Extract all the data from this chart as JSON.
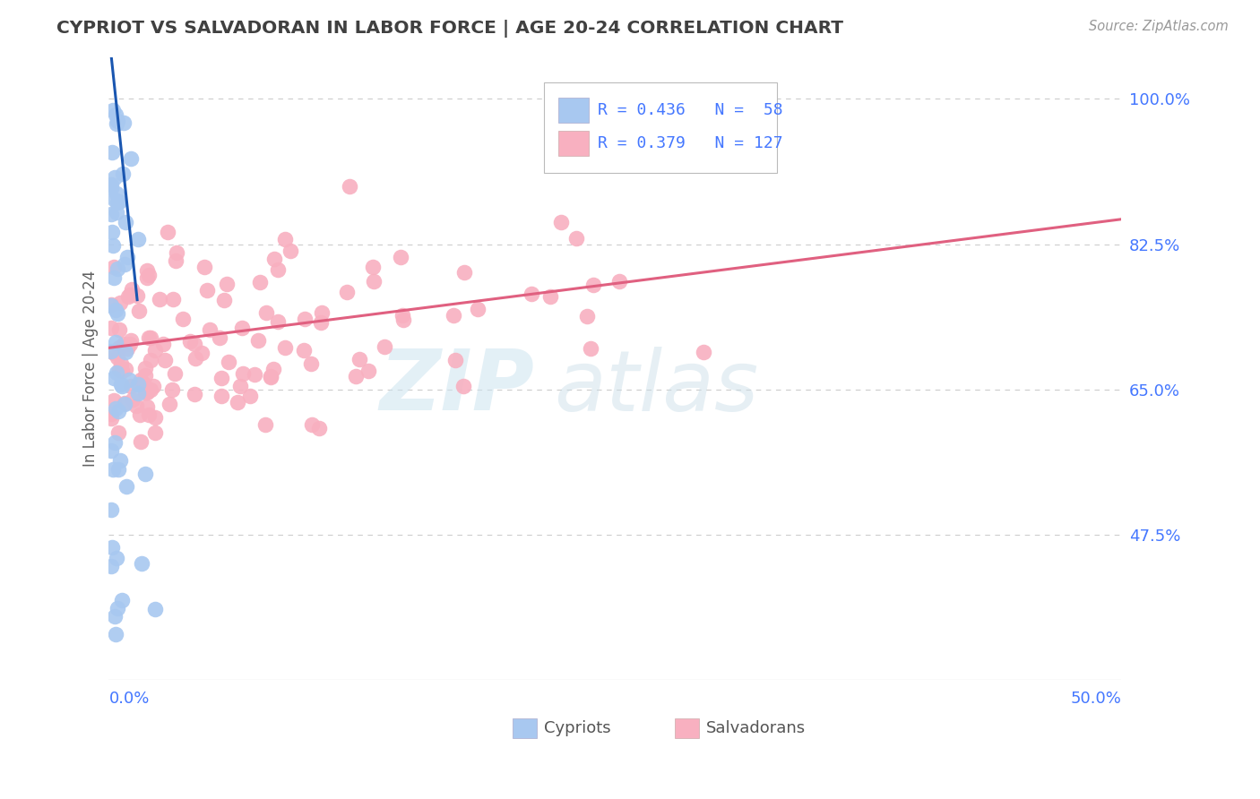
{
  "title": "CYPRIOT VS SALVADORAN IN LABOR FORCE | AGE 20-24 CORRELATION CHART",
  "source_text": "Source: ZipAtlas.com",
  "ylabel": "In Labor Force | Age 20-24",
  "xmin": 0.0,
  "xmax": 0.5,
  "ymin": 0.3,
  "ymax": 1.05,
  "xtick_labels": [
    "0.0%",
    "50.0%"
  ],
  "ytick_labels": [
    "100.0%",
    "82.5%",
    "65.0%",
    "47.5%"
  ],
  "ytick_values": [
    1.0,
    0.825,
    0.65,
    0.475
  ],
  "grid_color": "#cccccc",
  "background_color": "#ffffff",
  "cypriot_color": "#a8c8f0",
  "salvadoran_color": "#f8b0c0",
  "cypriot_line_color": "#1a56b0",
  "salvadoran_line_color": "#e06080",
  "legend_line1": "R = 0.436   N =  58",
  "legend_line2": "R = 0.379   N = 127",
  "title_color": "#404040",
  "axis_label_color": "#606060",
  "tick_label_color": "#4477ff",
  "watermark_text1": "ZIP",
  "watermark_text2": "atlas",
  "bottom_legend_labels": [
    "Cypriots",
    "Salvadorans"
  ]
}
